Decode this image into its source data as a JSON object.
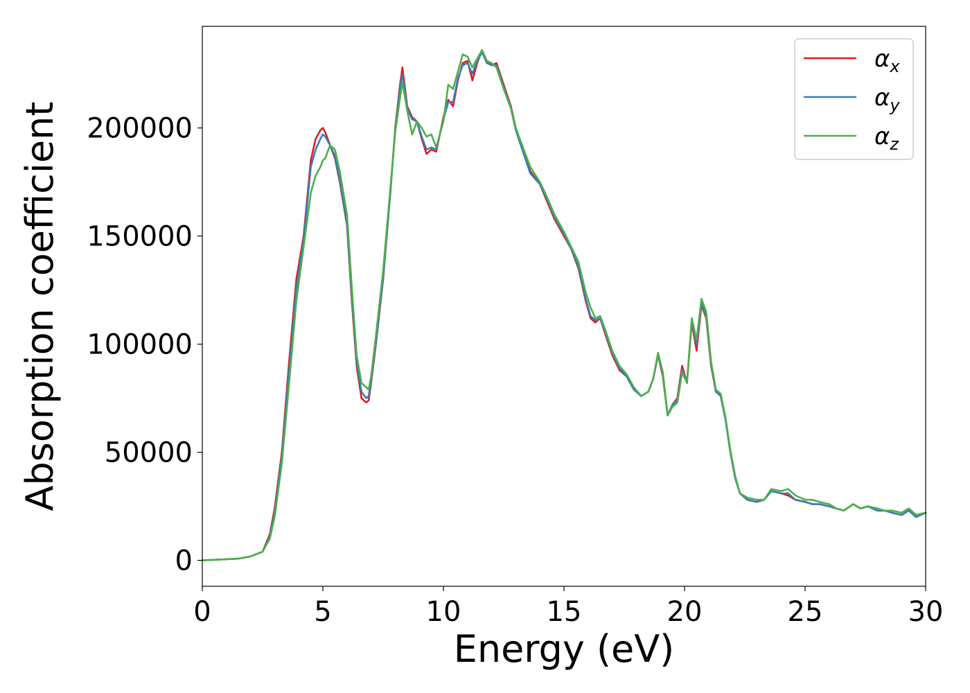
{
  "chart_data": {
    "type": "line",
    "title": "",
    "xlabel": "Energy (eV)",
    "ylabel": "Absorption coefficient",
    "xlim": [
      0,
      30
    ],
    "ylim": [
      -12000,
      247000
    ],
    "xticks": [
      0,
      5,
      10,
      15,
      20,
      25,
      30
    ],
    "xtick_labels": [
      "0",
      "5",
      "10",
      "15",
      "20",
      "25",
      "30"
    ],
    "yticks": [
      0,
      50000,
      100000,
      150000,
      200000
    ],
    "ytick_labels": [
      "0",
      "50000",
      "100000",
      "150000",
      "200000"
    ],
    "grid": false,
    "legend": "top-right",
    "series": [
      {
        "name": "αx",
        "legend_base": "α",
        "legend_sub": "x",
        "color": "#e41a1c",
        "x": [
          0,
          1,
          1.5,
          2,
          2.5,
          2.8,
          3,
          3.3,
          3.6,
          3.9,
          4.2,
          4.5,
          4.7,
          4.9,
          5,
          5.1,
          5.3,
          5.5,
          5.7,
          6,
          6.2,
          6.4,
          6.6,
          6.8,
          6.9,
          7,
          7.2,
          7.5,
          7.8,
          8,
          8.2,
          8.3,
          8.5,
          8.7,
          8.9,
          9.1,
          9.3,
          9.5,
          9.7,
          10,
          10.2,
          10.4,
          10.6,
          10.8,
          11,
          11.2,
          11.4,
          11.6,
          11.8,
          12,
          12.2,
          12.5,
          12.8,
          13,
          13.3,
          13.6,
          14,
          14.3,
          14.6,
          15,
          15.3,
          15.6,
          15.9,
          16.1,
          16.3,
          16.5,
          16.7,
          17,
          17.3,
          17.6,
          17.9,
          18.2,
          18.5,
          18.7,
          18.9,
          19.1,
          19.3,
          19.5,
          19.7,
          19.9,
          20.1,
          20.3,
          20.5,
          20.7,
          20.9,
          21.1,
          21.3,
          21.5,
          21.7,
          21.9,
          22.1,
          22.3,
          22.6,
          23,
          23.3,
          23.6,
          24,
          24.3,
          24.6,
          25,
          25.3,
          25.6,
          26,
          26.3,
          26.6,
          27,
          27.3,
          27.6,
          28,
          28.3,
          28.6,
          29,
          29.3,
          29.6,
          30
        ],
        "y": [
          0,
          500,
          800,
          1800,
          4000,
          12000,
          24000,
          50000,
          92000,
          130000,
          150000,
          185000,
          195000,
          199000,
          200000,
          198000,
          192000,
          186000,
          175000,
          155000,
          120000,
          90000,
          75000,
          73000,
          74000,
          82000,
          100000,
          130000,
          170000,
          200000,
          220000,
          228000,
          210000,
          205000,
          203000,
          195000,
          188000,
          190000,
          189000,
          205000,
          213000,
          210000,
          222000,
          230000,
          231000,
          222000,
          230000,
          236000,
          231000,
          229000,
          230000,
          220000,
          210000,
          200000,
          190000,
          180000,
          174000,
          166000,
          158000,
          150000,
          144000,
          135000,
          120000,
          112000,
          110000,
          112000,
          105000,
          95000,
          88000,
          85000,
          79000,
          76000,
          78000,
          84000,
          95000,
          85000,
          67000,
          72000,
          75000,
          90000,
          82000,
          110000,
          97000,
          118000,
          112000,
          90000,
          78000,
          76000,
          65000,
          50000,
          38000,
          31000,
          28000,
          27000,
          28000,
          32000,
          31000,
          30000,
          28000,
          27000,
          26000,
          26000,
          25000,
          24000,
          23000,
          26000,
          24000,
          25000,
          23000,
          23000,
          22000,
          21000,
          23000,
          21000,
          22000
        ]
      },
      {
        "name": "αy",
        "legend_base": "α",
        "legend_sub": "y",
        "color": "#377eb8",
        "x": [
          0,
          1,
          1.5,
          2,
          2.5,
          2.8,
          3,
          3.3,
          3.6,
          3.9,
          4.2,
          4.5,
          4.7,
          4.9,
          5,
          5.1,
          5.3,
          5.5,
          5.7,
          6,
          6.2,
          6.4,
          6.6,
          6.8,
          6.9,
          7,
          7.2,
          7.5,
          7.8,
          8,
          8.2,
          8.3,
          8.5,
          8.7,
          8.9,
          9.1,
          9.3,
          9.5,
          9.7,
          10,
          10.2,
          10.4,
          10.6,
          10.8,
          11,
          11.2,
          11.4,
          11.6,
          11.8,
          12,
          12.2,
          12.5,
          12.8,
          13,
          13.3,
          13.6,
          14,
          14.3,
          14.6,
          15,
          15.3,
          15.6,
          15.9,
          16.1,
          16.3,
          16.5,
          16.7,
          17,
          17.3,
          17.6,
          17.9,
          18.2,
          18.5,
          18.7,
          18.9,
          19.1,
          19.3,
          19.5,
          19.7,
          19.9,
          20.1,
          20.3,
          20.5,
          20.7,
          20.9,
          21.1,
          21.3,
          21.5,
          21.7,
          21.9,
          22.1,
          22.3,
          22.6,
          23,
          23.3,
          23.6,
          24,
          24.3,
          24.6,
          25,
          25.3,
          25.6,
          26,
          26.3,
          26.6,
          27,
          27.3,
          27.6,
          28,
          28.3,
          28.6,
          29,
          29.3,
          29.6,
          30
        ],
        "y": [
          0,
          500,
          800,
          1800,
          4000,
          11000,
          22000,
          48000,
          88000,
          126000,
          148000,
          182000,
          190000,
          195000,
          197000,
          196000,
          192000,
          187000,
          176000,
          156000,
          122000,
          92000,
          78000,
          75000,
          76000,
          83000,
          101000,
          131000,
          170000,
          199000,
          218000,
          225000,
          209000,
          204000,
          203000,
          196000,
          190000,
          191000,
          190000,
          204000,
          212000,
          212000,
          223000,
          229000,
          230000,
          225000,
          231000,
          235000,
          230000,
          229000,
          229000,
          219000,
          209000,
          199000,
          189000,
          179000,
          174000,
          167000,
          159000,
          151000,
          144000,
          136000,
          121000,
          113000,
          111000,
          112000,
          106000,
          96000,
          89000,
          85000,
          79000,
          76000,
          78000,
          84000,
          95000,
          86000,
          67000,
          72000,
          74000,
          88000,
          82000,
          111000,
          100000,
          119000,
          113000,
          91000,
          78000,
          76000,
          65000,
          50000,
          38000,
          31000,
          28000,
          27000,
          28000,
          32000,
          31000,
          31000,
          28000,
          27000,
          26000,
          26000,
          25000,
          24000,
          23000,
          26000,
          24000,
          25000,
          23000,
          23000,
          22000,
          21000,
          23000,
          20000,
          22000
        ]
      },
      {
        "name": "αz",
        "legend_base": "α",
        "legend_sub": "z",
        "color": "#4daf4a",
        "x": [
          0,
          1,
          1.5,
          2,
          2.5,
          2.8,
          3,
          3.3,
          3.6,
          3.9,
          4.2,
          4.5,
          4.7,
          4.9,
          5,
          5.1,
          5.3,
          5.5,
          5.7,
          6,
          6.2,
          6.4,
          6.6,
          6.8,
          6.9,
          7,
          7.2,
          7.5,
          7.8,
          8,
          8.2,
          8.3,
          8.5,
          8.7,
          8.9,
          9.1,
          9.3,
          9.5,
          9.7,
          10,
          10.2,
          10.4,
          10.6,
          10.8,
          11,
          11.2,
          11.4,
          11.6,
          11.8,
          12,
          12.2,
          12.5,
          12.8,
          13,
          13.3,
          13.6,
          14,
          14.3,
          14.6,
          15,
          15.3,
          15.6,
          15.9,
          16.1,
          16.3,
          16.5,
          16.7,
          17,
          17.3,
          17.6,
          17.9,
          18.2,
          18.5,
          18.7,
          18.9,
          19.1,
          19.3,
          19.5,
          19.7,
          19.9,
          20.1,
          20.3,
          20.5,
          20.7,
          20.9,
          21.1,
          21.3,
          21.5,
          21.7,
          21.9,
          22.1,
          22.3,
          22.6,
          23,
          23.3,
          23.6,
          24,
          24.3,
          24.6,
          25,
          25.3,
          25.6,
          26,
          26.3,
          26.6,
          27,
          27.3,
          27.6,
          28,
          28.3,
          28.6,
          29,
          29.3,
          29.6,
          30
        ],
        "y": [
          0,
          500,
          800,
          1800,
          4000,
          10000,
          20000,
          45000,
          82000,
          120000,
          145000,
          170000,
          178000,
          182000,
          185000,
          186000,
          192000,
          190000,
          180000,
          160000,
          126000,
          95000,
          82000,
          80000,
          79000,
          85000,
          104000,
          134000,
          172000,
          198000,
          214000,
          221000,
          208000,
          197000,
          203000,
          200000,
          196000,
          197000,
          191000,
          203000,
          220000,
          218000,
          226000,
          234000,
          233000,
          228000,
          232000,
          236000,
          231000,
          230000,
          228000,
          218000,
          209000,
          200000,
          191000,
          182000,
          175000,
          168000,
          160000,
          152000,
          145000,
          138000,
          124000,
          117000,
          112000,
          113000,
          107000,
          97000,
          90000,
          86000,
          80000,
          76000,
          78000,
          84000,
          96000,
          87000,
          67000,
          71000,
          73000,
          87000,
          82000,
          112000,
          102000,
          121000,
          115000,
          92000,
          79000,
          77000,
          66000,
          51000,
          39000,
          31000,
          29000,
          28000,
          28000,
          33000,
          32000,
          33000,
          30000,
          28000,
          28000,
          27000,
          26000,
          24000,
          23000,
          26000,
          24000,
          25000,
          24000,
          23000,
          23000,
          22000,
          24000,
          21000,
          22000
        ]
      }
    ]
  }
}
